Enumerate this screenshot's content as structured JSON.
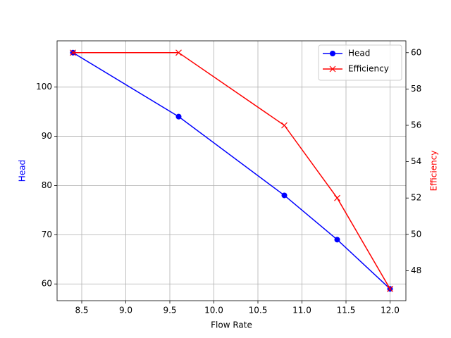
{
  "chart_data": {
    "type": "line",
    "x_label": "Flow Rate",
    "y_label": "Head",
    "y2_label": "Efficiency",
    "x": [
      8.4,
      9.6,
      10.8,
      11.4,
      12.0
    ],
    "series": [
      {
        "name": "Head",
        "color": "#0000ff",
        "marker": "o",
        "values": [
          107,
          94,
          78,
          69,
          59
        ]
      },
      {
        "name": "Efficiency",
        "color": "#ff0000",
        "marker": "x",
        "axis": "y2",
        "values": [
          60,
          60,
          56,
          52,
          47
        ]
      }
    ],
    "xlim": [
      8.22,
      12.18
    ],
    "xticks": [
      8.5,
      {
        "value": 9,
        "label": "9.0"
      },
      9.5,
      {
        "value": 10,
        "label": "10.0"
      },
      10.5,
      {
        "value": 11,
        "label": "11.0"
      },
      11.5,
      {
        "value": 12,
        "label": "12.0"
      }
    ],
    "ylim": [
      56.6,
      109.4
    ],
    "yticks": [
      60,
      70,
      80,
      90,
      100
    ],
    "y2lim": [
      46.35,
      60.65
    ],
    "y2ticks": [
      48,
      50,
      52,
      54,
      56,
      58,
      60
    ],
    "grid": true,
    "legend": "upper right"
  }
}
